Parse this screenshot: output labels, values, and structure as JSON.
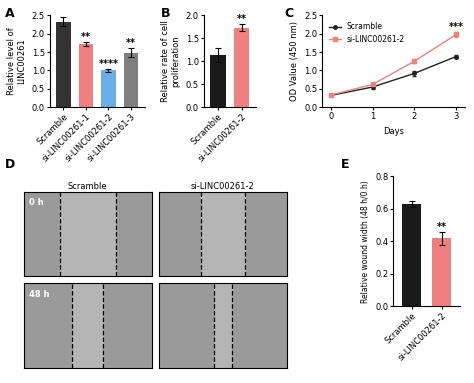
{
  "chart_data": [
    {
      "type": "bar",
      "title": "A",
      "categories": [
        "Scramble",
        "si-LINC00261-1",
        "si-LINC00261-2",
        "si-LINC00261-3"
      ],
      "values": [
        2.33,
        1.72,
        1.0,
        1.48
      ],
      "errors": [
        0.12,
        0.05,
        0.05,
        0.12
      ],
      "significance": [
        null,
        "**",
        "****",
        "**"
      ],
      "colors": [
        "#333333",
        "#f08080",
        "#6aaee8",
        "#808080"
      ],
      "y_label": "Relative level of\nLINC00261",
      "ylim": [
        0,
        2.5
      ],
      "yticks": [
        {
          "value": 0,
          "label": "0.0"
        },
        0.5,
        {
          "value": 1,
          "label": "1.0"
        },
        1.5,
        {
          "value": 2,
          "label": "2.0"
        },
        2.5
      ]
    },
    {
      "type": "bar",
      "title": "B",
      "categories": [
        "Scramble",
        "si-LINC00261-2"
      ],
      "values": [
        1.13,
        1.73
      ],
      "errors": [
        0.15,
        0.08
      ],
      "significance": [
        null,
        "**"
      ],
      "colors": [
        "#1a1a1a",
        "#f08080"
      ],
      "y_label": "Relative rate of cell\nproliferation",
      "ylim": [
        0,
        2.0
      ],
      "yticks": [
        {
          "value": 0,
          "label": "0.0"
        },
        0.5,
        {
          "value": 1,
          "label": "1.0"
        },
        1.5,
        {
          "value": 2,
          "label": "2.0"
        }
      ]
    },
    {
      "type": "line",
      "title": "C",
      "x": [
        0,
        1,
        2,
        3
      ],
      "series": [
        {
          "name": "Scramble",
          "color": "#222222",
          "marker": "o",
          "values": [
            0.32,
            0.55,
            0.92,
            1.38
          ],
          "errors": [
            0.02,
            0.05,
            0.07,
            0.05
          ]
        },
        {
          "name": "si-LINC00261-2",
          "color": "#f08080",
          "marker": "s",
          "values": [
            0.33,
            0.62,
            1.25,
            1.98
          ],
          "errors": [
            0.02,
            0.04,
            0.06,
            0.06
          ],
          "significance": [
            null,
            null,
            null,
            "***"
          ]
        }
      ],
      "x_label": "Days",
      "y_label": "OD Value (450 nm)",
      "xlim": [
        0,
        3
      ],
      "xticks": [
        0,
        1,
        2,
        3
      ],
      "ylim": [
        0,
        2.5
      ],
      "yticks": [
        {
          "value": 0,
          "label": "0.0"
        },
        0.5,
        {
          "value": 1,
          "label": "1.0"
        },
        1.5,
        {
          "value": 2,
          "label": "2.0"
        },
        2.5
      ],
      "legend": "upper left"
    },
    {
      "type": "image",
      "title": "D",
      "columns": [
        "Scramble",
        "si-LINC00261-2"
      ],
      "rows": [
        "0 h",
        "48 h"
      ]
    },
    {
      "type": "bar",
      "title": "E",
      "categories": [
        "Scramble",
        "si-LINC00261-2"
      ],
      "values": [
        0.63,
        0.42
      ],
      "errors": [
        0.02,
        0.04
      ],
      "significance": [
        null,
        "**"
      ],
      "colors": [
        "#1a1a1a",
        "#f08080"
      ],
      "y_label": "Relative wound width (48 h/0 h)",
      "ylim": [
        0,
        0.8
      ],
      "yticks": [
        {
          "value": 0,
          "label": "0.0"
        },
        0.2,
        0.4,
        0.6,
        0.8
      ]
    }
  ]
}
